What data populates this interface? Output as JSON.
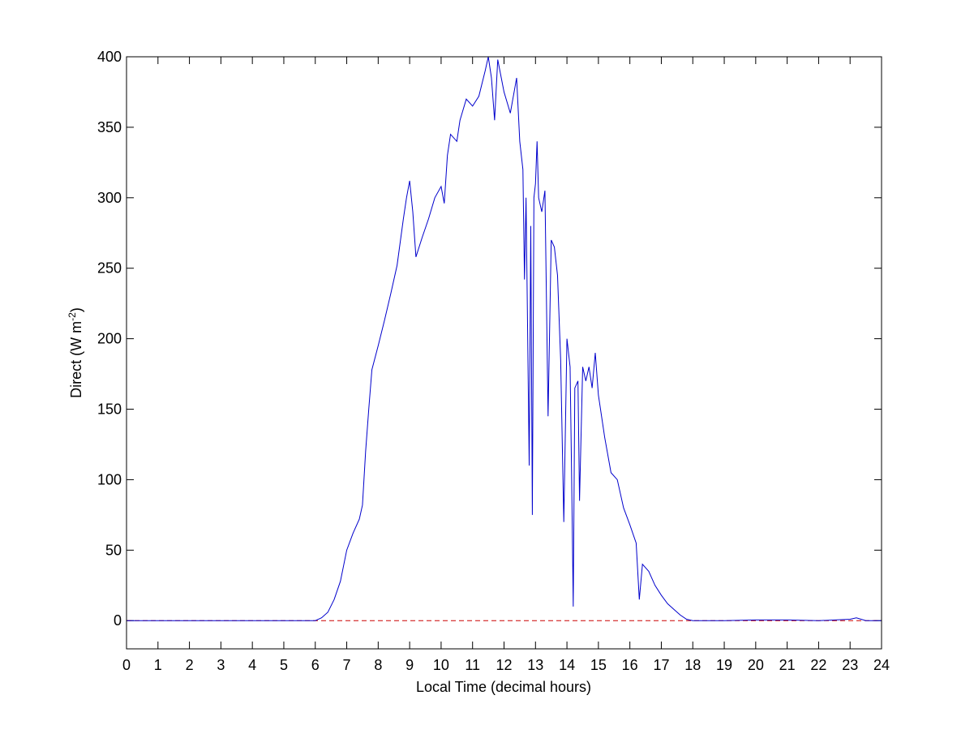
{
  "chart_data": {
    "type": "line",
    "xlabel": "Local Time (decimal hours)",
    "ylabel": [
      "Direct (W m",
      "-2",
      ")"
    ],
    "x": [
      0,
      1,
      2,
      3,
      4,
      5,
      6,
      6.2,
      6.4,
      6.6,
      6.8,
      7.0,
      7.2,
      7.4,
      7.5,
      7.6,
      7.7,
      7.8,
      8.0,
      8.2,
      8.4,
      8.6,
      8.8,
      8.9,
      9.0,
      9.1,
      9.2,
      9.4,
      9.6,
      9.8,
      10.0,
      10.1,
      10.2,
      10.3,
      10.5,
      10.6,
      10.8,
      11.0,
      11.2,
      11.4,
      11.5,
      11.6,
      11.7,
      11.8,
      12.0,
      12.2,
      12.4,
      12.5,
      12.6,
      12.65,
      12.7,
      12.8,
      12.85,
      12.9,
      12.95,
      13.0,
      13.05,
      13.1,
      13.2,
      13.3,
      13.4,
      13.5,
      13.6,
      13.7,
      13.8,
      13.9,
      14.0,
      14.1,
      14.15,
      14.2,
      14.25,
      14.35,
      14.4,
      14.5,
      14.6,
      14.7,
      14.8,
      14.9,
      15.0,
      15.2,
      15.4,
      15.6,
      15.8,
      16.0,
      16.2,
      16.3,
      16.4,
      16.6,
      16.8,
      17.0,
      17.2,
      17.4,
      17.6,
      17.8,
      18.0,
      19,
      20,
      21,
      22,
      23,
      23.2,
      23.5,
      24
    ],
    "values": [
      0,
      0,
      0,
      0,
      0,
      0,
      0,
      2,
      6,
      15,
      28,
      50,
      62,
      72,
      82,
      120,
      150,
      178,
      195,
      213,
      232,
      252,
      285,
      300,
      312,
      290,
      258,
      272,
      285,
      300,
      308,
      296,
      330,
      345,
      340,
      355,
      370,
      365,
      372,
      390,
      400,
      385,
      355,
      398,
      375,
      360,
      385,
      340,
      320,
      242,
      300,
      110,
      280,
      75,
      300,
      310,
      340,
      300,
      290,
      305,
      145,
      270,
      265,
      245,
      185,
      70,
      200,
      180,
      100,
      10,
      165,
      170,
      85,
      180,
      170,
      180,
      165,
      190,
      160,
      130,
      105,
      100,
      80,
      68,
      55,
      15,
      40,
      35,
      25,
      18,
      12,
      8,
      4,
      1,
      0,
      0,
      0.5,
      0.5,
      0,
      1,
      2,
      0,
      0
    ],
    "color": "#0000cc",
    "reference_line": {
      "y": 0,
      "color": "#cc0000",
      "dashed": true
    },
    "xlim": [
      0,
      24
    ],
    "xticks": [
      0,
      1,
      2,
      3,
      4,
      5,
      6,
      7,
      8,
      9,
      10,
      11,
      12,
      13,
      14,
      15,
      16,
      17,
      18,
      19,
      20,
      21,
      22,
      23,
      24
    ],
    "ylim": [
      -20,
      400
    ],
    "yticks": [
      0,
      50,
      100,
      150,
      200,
      250,
      300,
      350,
      400
    ]
  }
}
